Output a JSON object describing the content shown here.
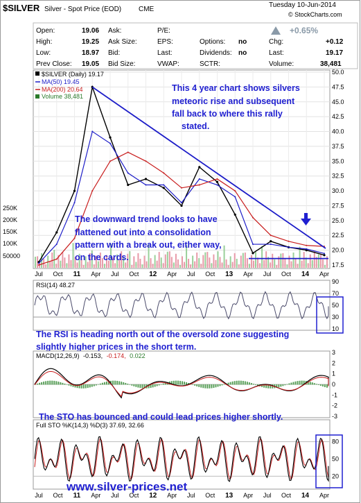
{
  "header": {
    "title": "$SILVER",
    "subtitle": "Silver - Spot Price (EOD)",
    "exchange": "CME",
    "date": "Tuesday  10-Jun-2014",
    "copyright": "© StockCharts.com",
    "change_pct": "+0.65%"
  },
  "quote_table": [
    {
      "label": "Open:",
      "value": "19.06"
    },
    {
      "label": "High:",
      "value": "19.25"
    },
    {
      "label": "Low:",
      "value": "18.97"
    },
    {
      "label": "Prev Close:",
      "value": "19.05"
    },
    {
      "label": "Ask:",
      "value": ""
    },
    {
      "label": "Ask Size:",
      "value": ""
    },
    {
      "label": "Bid:",
      "value": ""
    },
    {
      "label": "Bid Size:",
      "value": ""
    },
    {
      "label": "P/E:",
      "value": ""
    },
    {
      "label": "EPS:",
      "value": ""
    },
    {
      "label": "Last:",
      "value": ""
    },
    {
      "label": "VWAP:",
      "value": ""
    },
    {
      "label": "Options:",
      "value": "no"
    },
    {
      "label": "Dividends:",
      "value": "no"
    },
    {
      "label": "SCTR:",
      "value": ""
    },
    {
      "label": "Chg:",
      "value": "+0.12"
    },
    {
      "label": "Last:",
      "value": "19.17"
    },
    {
      "label": "Volume:",
      "value": "38,481"
    }
  ],
  "price_panel": {
    "legend": [
      "$SILVER (Daily) 19.17",
      "MA(50) 19.45",
      "MA(200) 20.64",
      "Volume 38,481"
    ],
    "legend_colors": [
      "#000000",
      "#1c1cc8",
      "#c81c1c",
      "#2a7a2a"
    ],
    "y_ticks": [
      "50.0",
      "47.5",
      "45.0",
      "42.5",
      "40.0",
      "37.5",
      "35.0",
      "32.5",
      "30.0",
      "27.5",
      "25.0",
      "22.5",
      "20.0",
      "17.5"
    ],
    "volume_ticks": [
      "250K",
      "200K",
      "150K",
      "100K",
      "50000"
    ],
    "annotation_1": [
      "This 4 year chart shows silvers",
      "meteoric rise and subsequent",
      "fall back to where this rally",
      "stated."
    ],
    "annotation_2": [
      "The downward trend looks to have",
      "flattened out into a consolidation",
      "pattern with a break out, either way,",
      "on the cards."
    ]
  },
  "x_axis": {
    "labels": [
      "Jul",
      "Oct",
      "11",
      "Apr",
      "Jul",
      "Oct",
      "12",
      "Apr",
      "Jul",
      "Oct",
      "13",
      "Apr",
      "Jul",
      "Oct",
      "14",
      "Apr"
    ],
    "year_labels": [
      "11",
      "12",
      "13",
      "14"
    ]
  },
  "rsi_panel": {
    "legend": "RSI(14) 48.27",
    "y_ticks": [
      "90",
      "70",
      "50",
      "30",
      "10"
    ],
    "annotation": [
      "The RSI is heading north out of the oversold zone suggesting",
      "slightly higher prices in the short term."
    ]
  },
  "macd_panel": {
    "legend_prefix": "MACD(12,26,9)",
    "legend_v1": "-0.153,",
    "legend_v2": "-0.174,",
    "legend_v3": "0.022",
    "y_ticks": [
      "3",
      "2",
      "1",
      "0",
      "-1",
      "-2",
      "-3"
    ]
  },
  "sto_panel": {
    "legend": "Full STO %K(14,3) %D(3) 37.69, 32.66",
    "y_ticks": [
      "80",
      "50",
      "20"
    ],
    "annotation": "The STO has bounced and could lead prices higher shortly."
  },
  "watermark": "www.silver-prices.net",
  "chart_data": {
    "type": "line",
    "title": "$SILVER Silver - Spot Price (EOD) CME",
    "x": [
      "Jul-10",
      "Oct-10",
      "Jan-11",
      "Apr-11",
      "Jul-11",
      "Oct-11",
      "Jan-12",
      "Apr-12",
      "Jul-12",
      "Oct-12",
      "Jan-13",
      "Apr-13",
      "Jul-13",
      "Oct-13",
      "Jan-14",
      "Apr-14",
      "Jun-14"
    ],
    "series": [
      {
        "name": "$SILVER (Daily)",
        "values": [
          18.0,
          23.0,
          30.0,
          47.5,
          39.0,
          31.0,
          32.0,
          30.5,
          27.5,
          34.0,
          31.5,
          26.0,
          19.5,
          21.5,
          20.5,
          20.0,
          19.17
        ]
      },
      {
        "name": "MA(50)",
        "values": [
          17.8,
          21.0,
          28.0,
          40.0,
          38.0,
          33.0,
          31.0,
          31.0,
          28.0,
          32.0,
          31.0,
          29.0,
          21.0,
          21.0,
          20.5,
          20.2,
          19.45
        ]
      },
      {
        "name": "MA(200)",
        "values": [
          17.5,
          18.5,
          22.0,
          30.0,
          35.0,
          36.5,
          35.0,
          33.0,
          30.5,
          31.0,
          32.0,
          30.0,
          25.5,
          22.5,
          21.5,
          20.8,
          20.64
        ]
      }
    ],
    "ylim": [
      17.5,
      50.0
    ],
    "rsi": {
      "name": "RSI(14)",
      "last": 48.27,
      "levels": [
        30,
        70
      ],
      "ylim": [
        10,
        90
      ]
    },
    "macd": {
      "name": "MACD(12,26,9)",
      "last": [
        -0.153,
        -0.174,
        0.022
      ],
      "ylim": [
        -3,
        3
      ]
    },
    "sto": {
      "name": "Full STO %K(14,3) %D(3)",
      "last": [
        37.69,
        32.66
      ],
      "ylim": [
        0,
        100
      ]
    },
    "colors": {
      "price": "#000000",
      "ma50": "#1c1cc8",
      "ma200": "#c81c1c",
      "trendline": "#1c1cc8",
      "volume_up": "#e89aa8",
      "volume_down": "#9ad09a"
    }
  }
}
